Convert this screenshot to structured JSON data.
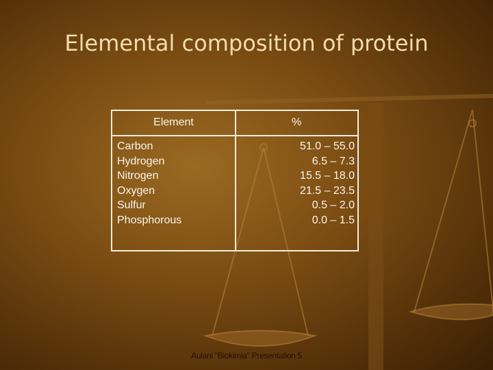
{
  "title": "Elemental composition of protein",
  "table": {
    "header": [
      "Element",
      "%"
    ],
    "rows": [
      [
        "Carbon",
        "51.0 – 55.0"
      ],
      [
        "Hydrogen",
        "6.5 – 7.3"
      ],
      [
        "Nitrogen",
        "15.5 – 18.0"
      ],
      [
        "Oxygen",
        "21.5 – 23.5"
      ],
      [
        "Sulfur",
        "0.5 – 2.0"
      ],
      [
        "Phosphorous",
        "0.0 – 1.5"
      ]
    ]
  },
  "footer": "Aulani \"Biokimia\" Presentation 5"
}
